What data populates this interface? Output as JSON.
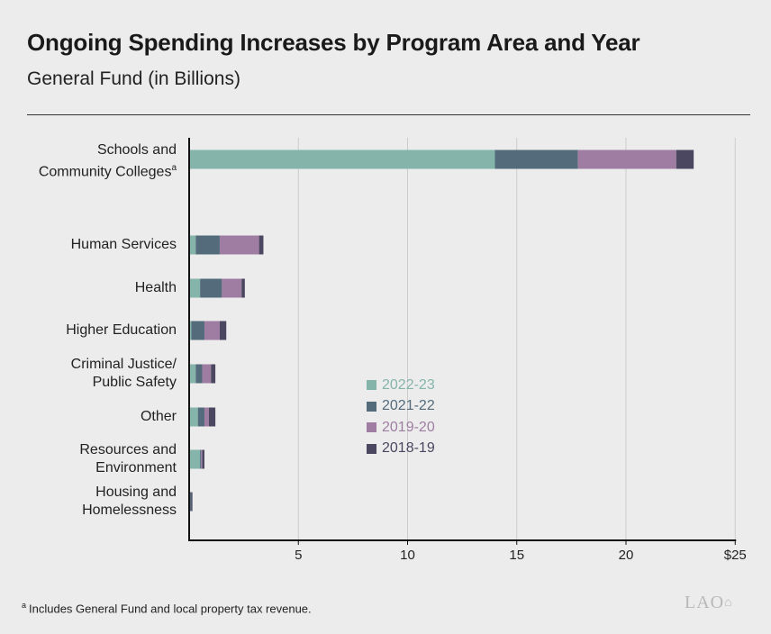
{
  "header": {
    "title": "Ongoing Spending Increases by Program Area and Year",
    "subtitle": "General Fund (in Billions)"
  },
  "chart_data": {
    "type": "bar",
    "orientation": "horizontal",
    "stacked": true,
    "categories": [
      "Schools and Community Colleges",
      "Human Services",
      "Health",
      "Higher Education",
      "Criminal Justice/ Public Safety",
      "Other",
      "Resources and Environment",
      "Housing and Homelessness"
    ],
    "category_footnote_marks": [
      "a",
      "",
      "",
      "",
      "",
      "",
      "",
      ""
    ],
    "series": [
      {
        "name": "2022-23",
        "color": "#85b5aa",
        "values": [
          14.0,
          0.3,
          0.5,
          0.1,
          0.3,
          0.4,
          0.5,
          0.0
        ]
      },
      {
        "name": "2021-22",
        "color": "#536b7b",
        "values": [
          3.8,
          1.1,
          1.0,
          0.6,
          0.3,
          0.3,
          0.05,
          0.1
        ]
      },
      {
        "name": "2019-20",
        "color": "#9f7da3",
        "values": [
          4.5,
          1.8,
          0.9,
          0.7,
          0.4,
          0.2,
          0.05,
          0.0
        ]
      },
      {
        "name": "2018-19",
        "color": "#4b4760",
        "values": [
          0.8,
          0.2,
          0.15,
          0.3,
          0.2,
          0.3,
          0.1,
          0.05
        ]
      }
    ],
    "x_ticks": [
      5,
      10,
      15,
      20,
      25
    ],
    "x_tick_labels": [
      "5",
      "10",
      "15",
      "20",
      "$25"
    ],
    "xlim": [
      0,
      25
    ],
    "grid": true,
    "legend_position": "center"
  },
  "footnote": {
    "mark": "a",
    "text": "Includes General Fund and local property tax revenue."
  },
  "logo": {
    "text": "LAO"
  },
  "colors": {
    "background": "#ececec",
    "gridline": "#cccccc",
    "axis": "#111111"
  }
}
